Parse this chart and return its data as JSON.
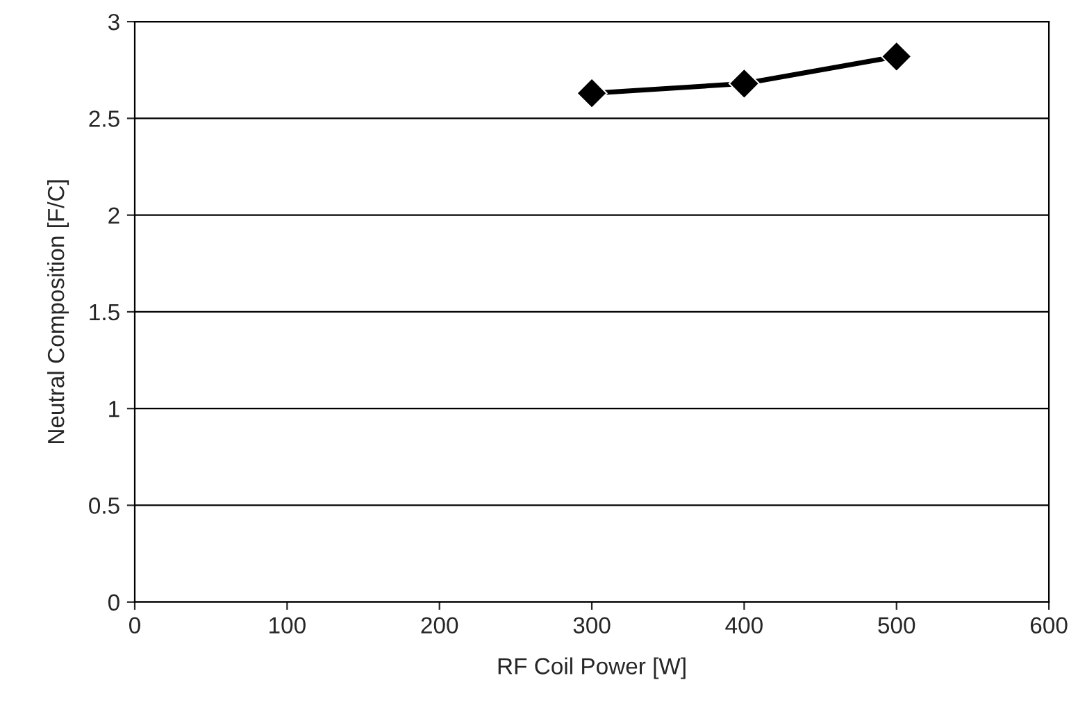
{
  "chart_data": {
    "type": "line",
    "xlabel": "RF Coil Power [W]",
    "ylabel": "Neutral Composition [F/C]",
    "x": [
      300,
      400,
      500
    ],
    "series": [
      {
        "color": "#000000",
        "values": [
          2.63,
          2.68,
          2.82
        ]
      }
    ],
    "xlim": [
      0,
      600
    ],
    "xticks": [
      0,
      100,
      200,
      300,
      400,
      500,
      600
    ],
    "ylim": [
      0,
      3
    ],
    "yticks": [
      0,
      0.5,
      1,
      1.5,
      2,
      2.5,
      3
    ],
    "grid": "y",
    "marker": "diamond",
    "line_style": "solid",
    "legend": false
  }
}
